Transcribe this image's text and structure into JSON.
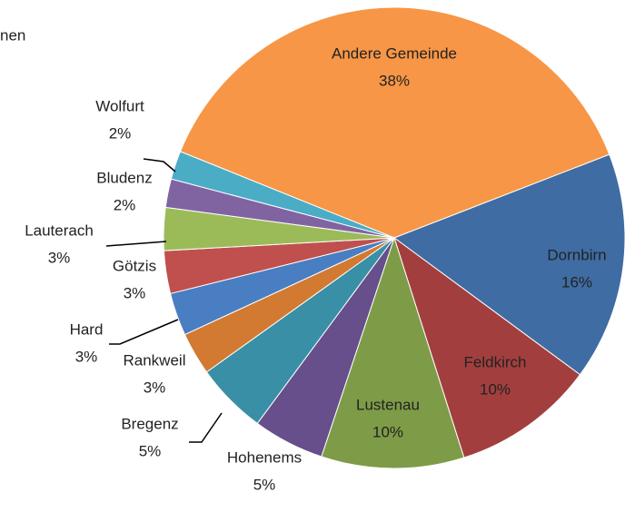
{
  "chart_data": {
    "type": "pie",
    "title": "nen",
    "categories": [
      "Andere Gemeinde",
      "Dornbirn",
      "Feldkirch",
      "Lustenau",
      "Hohenems",
      "Bregenz",
      "Rankweil",
      "Hard",
      "Götzis",
      "Lauterach",
      "Bludenz",
      "Wolfurt"
    ],
    "values": [
      38,
      16,
      10,
      10,
      5,
      5,
      3,
      3,
      3,
      3,
      2,
      2
    ],
    "value_labels": [
      "38%",
      "16%",
      "10%",
      "10%",
      "5%",
      "5%",
      "3%",
      "3%",
      "3%",
      "3%",
      "2%",
      "2%"
    ],
    "colors": [
      "#f79646",
      "#3f6ca3",
      "#a23f3e",
      "#7e9b47",
      "#664f8a",
      "#398fa5",
      "#d27a32",
      "#4a7ec2",
      "#c0504d",
      "#9bbb59",
      "#8064a2",
      "#4bacc6"
    ]
  }
}
